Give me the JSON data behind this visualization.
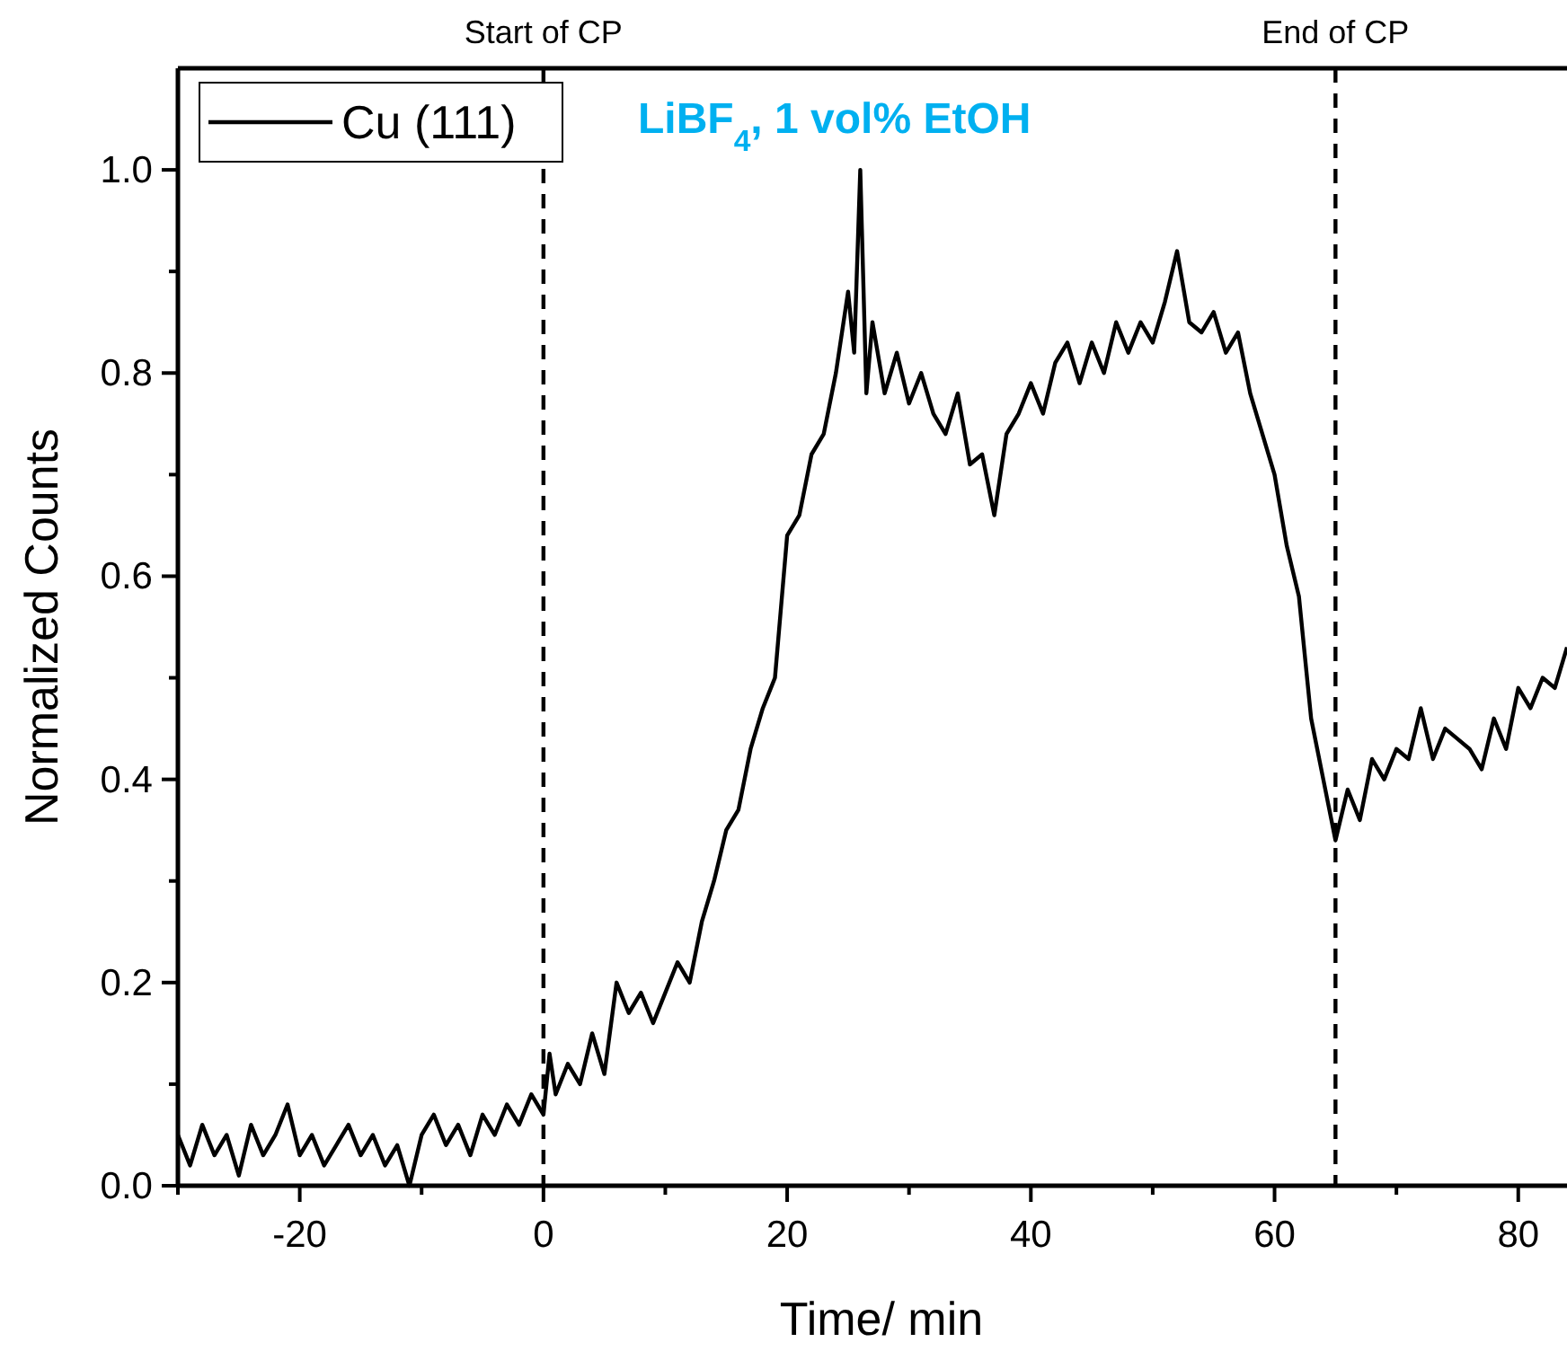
{
  "chart_data": {
    "type": "line",
    "xlabel": "Time/ min",
    "ylabel": "Normalized Counts",
    "xlim": [
      -30,
      84
    ],
    "ylim": [
      0,
      1.1
    ],
    "xticks": [
      {
        "value": -30,
        "label": null
      },
      -20,
      {
        "value": -10,
        "label": null
      },
      0,
      {
        "value": 10,
        "label": null
      },
      20,
      {
        "value": 30,
        "label": null
      },
      40,
      {
        "value": 50,
        "label": null
      },
      60,
      {
        "value": 70,
        "label": null
      },
      80
    ],
    "yticks": [
      {
        "value": 0,
        "label": "0.0"
      },
      {
        "value": 0.1,
        "label": null
      },
      {
        "value": 0.2,
        "label": "0.2"
      },
      {
        "value": 0.3,
        "label": null
      },
      {
        "value": 0.4,
        "label": "0.4"
      },
      {
        "value": 0.5,
        "label": null
      },
      {
        "value": 0.6,
        "label": "0.6"
      },
      {
        "value": 0.7,
        "label": null
      },
      {
        "value": 0.8,
        "label": "0.8"
      },
      {
        "value": 0.9,
        "label": null
      },
      {
        "value": 1.0,
        "label": "1.0"
      }
    ],
    "grid": false,
    "legend": "top left",
    "line_style": "solid",
    "marker": "none",
    "x": [
      -30,
      -29,
      -28,
      -27,
      -26,
      -25,
      -24,
      -23,
      -22,
      -21,
      -20,
      -19,
      -18,
      -17,
      -16,
      -15,
      -14,
      -13,
      -12,
      -11,
      -10,
      -9,
      -8,
      -7,
      -6,
      -5,
      -4,
      -3,
      -2,
      -1,
      0,
      0.5,
      1,
      2,
      3,
      4,
      5,
      6,
      7,
      8,
      9,
      10,
      11,
      12,
      13,
      14,
      15,
      16,
      17,
      18,
      19,
      19.5,
      20,
      21,
      22,
      23,
      24,
      25,
      25.5,
      26,
      26.5,
      27,
      28,
      29,
      30,
      31,
      32,
      33,
      34,
      35,
      36,
      37,
      38,
      39,
      40,
      41,
      42,
      43,
      44,
      45,
      46,
      47,
      48,
      49,
      50,
      51,
      52,
      53,
      54,
      55,
      56,
      57,
      58,
      59,
      60,
      61,
      62,
      63,
      64,
      64.5,
      65,
      66,
      67,
      68,
      69,
      70,
      71,
      72,
      73,
      74,
      75,
      76,
      77,
      78,
      79,
      80,
      81,
      82,
      83,
      84
    ],
    "series": [
      {
        "name": "Cu (111)",
        "color": "#000000",
        "values": [
          0.05,
          0.02,
          0.06,
          0.03,
          0.05,
          0.01,
          0.06,
          0.03,
          0.05,
          0.08,
          0.03,
          0.05,
          0.02,
          0.04,
          0.06,
          0.03,
          0.05,
          0.02,
          0.04,
          0.0,
          0.05,
          0.07,
          0.04,
          0.06,
          0.03,
          0.07,
          0.05,
          0.08,
          0.06,
          0.09,
          0.07,
          0.13,
          0.09,
          0.12,
          0.1,
          0.15,
          0.11,
          0.2,
          0.17,
          0.19,
          0.16,
          0.19,
          0.22,
          0.2,
          0.26,
          0.3,
          0.35,
          0.37,
          0.43,
          0.47,
          0.5,
          0.57,
          0.64,
          0.66,
          0.72,
          0.74,
          0.8,
          0.88,
          0.82,
          1.0,
          0.78,
          0.85,
          0.78,
          0.82,
          0.77,
          0.8,
          0.76,
          0.74,
          0.78,
          0.71,
          0.72,
          0.66,
          0.74,
          0.76,
          0.79,
          0.76,
          0.81,
          0.83,
          0.79,
          0.83,
          0.8,
          0.85,
          0.82,
          0.85,
          0.83,
          0.87,
          0.92,
          0.85,
          0.84,
          0.86,
          0.82,
          0.84,
          0.78,
          0.74,
          0.7,
          0.63,
          0.58,
          0.46,
          0.4,
          0.37,
          0.34,
          0.39,
          0.36,
          0.42,
          0.4,
          0.43,
          0.42,
          0.47,
          0.42,
          0.45,
          0.44,
          0.43,
          0.41,
          0.46,
          0.43,
          0.49,
          0.47,
          0.5,
          0.49,
          0.53
        ]
      }
    ],
    "ref_lines": [
      {
        "axis": "x",
        "value": 0,
        "label": "Start of CP",
        "color": "#000000",
        "line_style": "dashed"
      },
      {
        "axis": "x",
        "value": 65,
        "label": "End of CP",
        "color": "#000000",
        "line_style": "dashed"
      }
    ],
    "annotations": [
      "LiBF$_{4}$, 1 vol% EtOH"
    ]
  }
}
